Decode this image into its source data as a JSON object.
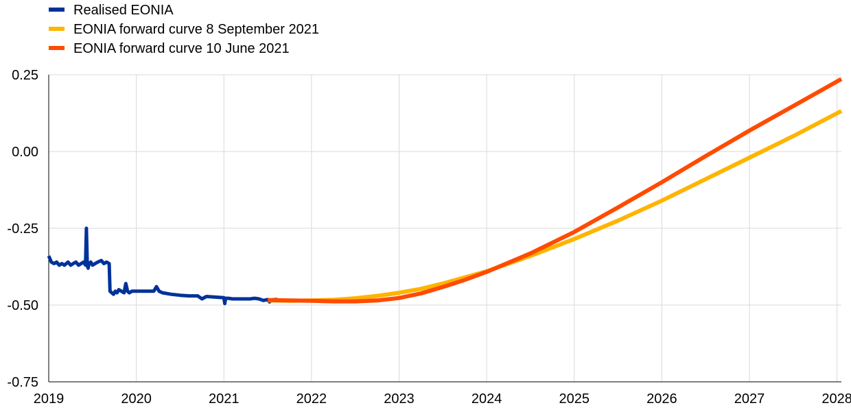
{
  "chart_data": {
    "type": "line",
    "title": "",
    "xlabel": "",
    "ylabel": "",
    "xlim": [
      2019,
      2028.05
    ],
    "ylim": [
      -0.75,
      0.25
    ],
    "x_ticks": [
      2019,
      2020,
      2021,
      2022,
      2023,
      2024,
      2025,
      2026,
      2027,
      2028
    ],
    "x_tick_labels": [
      "2019",
      "2020",
      "2021",
      "2022",
      "2023",
      "2024",
      "2025",
      "2026",
      "2027",
      "2028"
    ],
    "y_ticks": [
      0.25,
      0.0,
      -0.25,
      -0.5,
      -0.75
    ],
    "y_tick_labels": [
      "0.25",
      "0.00",
      "-0.25",
      "-0.50",
      "-0.75"
    ],
    "grid": {
      "vertical": true,
      "horizontal": true
    },
    "legend_position": "top-left",
    "series": [
      {
        "name": "Realised EONIA",
        "color": "#003299",
        "x": [
          2019.0,
          2019.03,
          2019.06,
          2019.09,
          2019.12,
          2019.15,
          2019.18,
          2019.22,
          2019.25,
          2019.28,
          2019.31,
          2019.34,
          2019.37,
          2019.4,
          2019.42,
          2019.43,
          2019.44,
          2019.45,
          2019.46,
          2019.48,
          2019.5,
          2019.53,
          2019.56,
          2019.6,
          2019.63,
          2019.66,
          2019.69,
          2019.7,
          2019.72,
          2019.74,
          2019.76,
          2019.78,
          2019.8,
          2019.83,
          2019.86,
          2019.88,
          2019.9,
          2019.92,
          2019.95,
          2020.0,
          2020.1,
          2020.2,
          2020.23,
          2020.26,
          2020.3,
          2020.4,
          2020.5,
          2020.6,
          2020.7,
          2020.75,
          2020.8,
          2020.9,
          2021.0,
          2021.01,
          2021.02,
          2021.05,
          2021.1,
          2021.2,
          2021.3,
          2021.35,
          2021.4,
          2021.45,
          2021.5,
          2021.52,
          2021.55,
          2021.6,
          2021.65
        ],
        "y": [
          -0.34,
          -0.36,
          -0.365,
          -0.36,
          -0.37,
          -0.365,
          -0.37,
          -0.36,
          -0.37,
          -0.365,
          -0.36,
          -0.37,
          -0.365,
          -0.36,
          -0.37,
          -0.25,
          -0.37,
          -0.38,
          -0.365,
          -0.36,
          -0.37,
          -0.365,
          -0.36,
          -0.355,
          -0.365,
          -0.36,
          -0.365,
          -0.455,
          -0.46,
          -0.465,
          -0.455,
          -0.46,
          -0.45,
          -0.455,
          -0.46,
          -0.43,
          -0.455,
          -0.46,
          -0.455,
          -0.455,
          -0.455,
          -0.455,
          -0.44,
          -0.455,
          -0.46,
          -0.465,
          -0.468,
          -0.47,
          -0.47,
          -0.48,
          -0.472,
          -0.474,
          -0.476,
          -0.495,
          -0.478,
          -0.478,
          -0.48,
          -0.48,
          -0.48,
          -0.478,
          -0.48,
          -0.485,
          -0.482,
          -0.49,
          -0.483,
          -0.482,
          -0.485
        ]
      },
      {
        "name": "EONIA forward curve 8 September 2021",
        "color": "#ffb400",
        "x": [
          2021.5,
          2021.75,
          2022.0,
          2022.25,
          2022.5,
          2022.75,
          2023.0,
          2023.25,
          2023.5,
          2023.75,
          2024.0,
          2024.5,
          2025.0,
          2025.5,
          2026.0,
          2026.5,
          2027.0,
          2027.5,
          2028.05
        ],
        "y": [
          -0.485,
          -0.486,
          -0.485,
          -0.483,
          -0.478,
          -0.47,
          -0.46,
          -0.447,
          -0.43,
          -0.41,
          -0.39,
          -0.34,
          -0.285,
          -0.225,
          -0.16,
          -0.09,
          -0.02,
          0.05,
          0.132
        ]
      },
      {
        "name": "EONIA forward curve 10 June 2021",
        "color": "#ff4b00",
        "x": [
          2021.5,
          2021.75,
          2022.0,
          2022.25,
          2022.5,
          2022.75,
          2023.0,
          2023.25,
          2023.5,
          2023.75,
          2024.0,
          2024.5,
          2025.0,
          2025.5,
          2026.0,
          2026.5,
          2027.0,
          2027.5,
          2028.05
        ],
        "y": [
          -0.484,
          -0.485,
          -0.486,
          -0.488,
          -0.488,
          -0.485,
          -0.477,
          -0.462,
          -0.441,
          -0.418,
          -0.392,
          -0.332,
          -0.262,
          -0.182,
          -0.1,
          -0.015,
          0.068,
          0.148,
          0.236
        ]
      }
    ]
  }
}
